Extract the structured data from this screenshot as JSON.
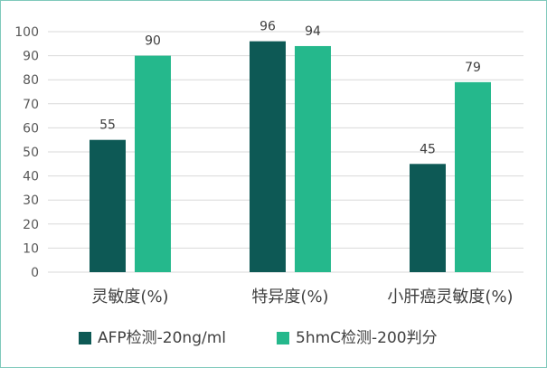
{
  "chart_data": {
    "type": "bar",
    "categories": [
      "灵敏度(%)",
      "特异度(%)",
      "小肝癌灵敏度(%)"
    ],
    "series": [
      {
        "name": "AFP检测-20ng/ml",
        "values": [
          55,
          96,
          45
        ],
        "color": "#0d5955"
      },
      {
        "name": "5hmC检测-200判分",
        "values": [
          90,
          94,
          79
        ],
        "color": "#25b88c"
      }
    ],
    "title": "",
    "xlabel": "",
    "ylabel": "",
    "ylim": [
      0,
      100
    ],
    "yticks": [
      0,
      10,
      20,
      30,
      40,
      50,
      60,
      70,
      80,
      90,
      100
    ],
    "grid": true,
    "legend_position": "bottom",
    "gridline_color": "#d9d9d9",
    "frame_border_color": "#7fc9bb"
  }
}
